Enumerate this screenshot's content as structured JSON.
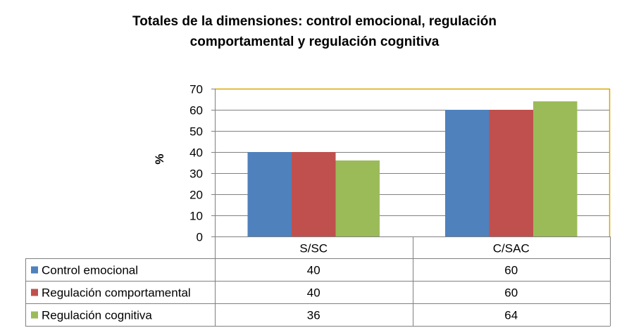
{
  "chart_data": {
    "type": "bar",
    "title_lines": [
      "Totales de la dimensiones: control emocional, regulación",
      "comportamental y regulación cognitiva"
    ],
    "xlabel": "",
    "ylabel": "%",
    "categories": [
      "S/SC",
      "C/SAC"
    ],
    "series": [
      {
        "name": "Control emocional",
        "values": [
          40,
          60
        ],
        "color": "#4F81BD"
      },
      {
        "name": "Regulación comportamental",
        "values": [
          40,
          60
        ],
        "color": "#C0504D"
      },
      {
        "name": "Regulación cognitiva",
        "values": [
          36,
          64
        ],
        "color": "#9BBB59"
      }
    ],
    "ylim": [
      0,
      70
    ],
    "yticks": [
      0,
      10,
      20,
      30,
      40,
      50,
      60,
      70
    ],
    "grid": true,
    "legend": "data-table",
    "plot_border_color": "#D9A500"
  }
}
